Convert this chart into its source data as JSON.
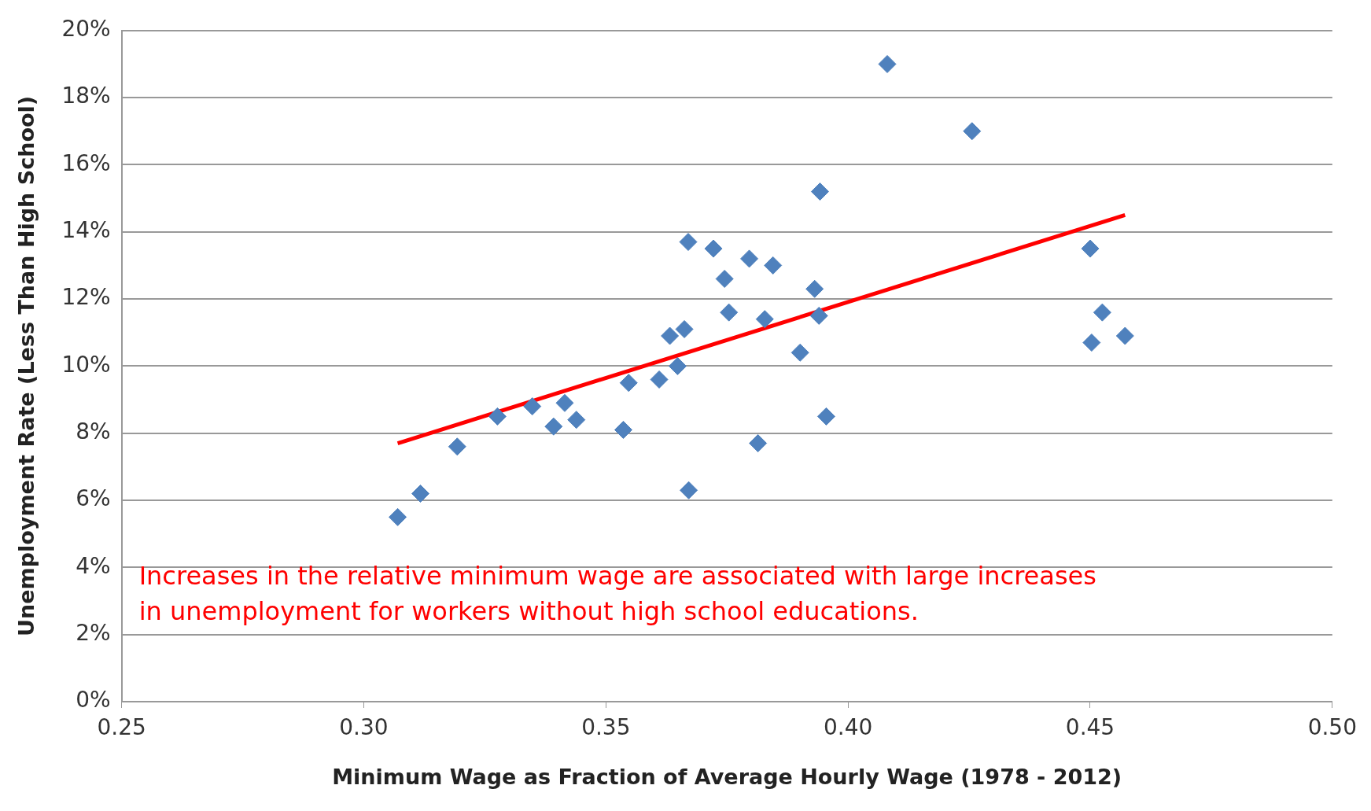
{
  "chart_data": {
    "type": "scatter",
    "xlabel": "Minimum Wage as Fraction of Average Hourly Wage (1978 - 2012)",
    "ylabel": "Unemployment Rate (Less Than High School)",
    "xlim": [
      0.25,
      0.5
    ],
    "xticks": [
      {
        "value": 0.25,
        "label": "0.25"
      },
      {
        "value": 0.3,
        "label": "0.30"
      },
      {
        "value": 0.35,
        "label": "0.35"
      },
      {
        "value": 0.4,
        "label": "0.40"
      },
      {
        "value": 0.45,
        "label": "0.45"
      },
      {
        "value": 0.5,
        "label": "0.50"
      }
    ],
    "ylim": [
      0,
      20
    ],
    "yticks": [
      {
        "value": 0,
        "label": "0%"
      },
      {
        "value": 2,
        "label": "2%"
      },
      {
        "value": 4,
        "label": "4%"
      },
      {
        "value": 6,
        "label": "6%"
      },
      {
        "value": 8,
        "label": "8%"
      },
      {
        "value": 10,
        "label": "10%"
      },
      {
        "value": 12,
        "label": "12%"
      },
      {
        "value": 14,
        "label": "14%"
      },
      {
        "value": 16,
        "label": "16%"
      },
      {
        "value": 18,
        "label": "18%"
      },
      {
        "value": 20,
        "label": "20%"
      }
    ],
    "grid": "y",
    "series": [
      {
        "type": "scatter",
        "marker": "diamond",
        "color": "#4f81bd",
        "x": [
          0.307,
          0.3117,
          0.3193,
          0.3276,
          0.3348,
          0.3392,
          0.3415,
          0.3439,
          0.3536,
          0.3547,
          0.361,
          0.3632,
          0.3648,
          0.3662,
          0.367,
          0.3671,
          0.3722,
          0.3745,
          0.3754,
          0.3796,
          0.3814,
          0.3828,
          0.3845,
          0.3901,
          0.3931,
          0.394,
          0.3942,
          0.3955,
          0.4081,
          0.4256,
          0.45,
          0.4503,
          0.4525,
          0.4572
        ],
        "values": [
          5.5,
          6.2,
          7.6,
          8.5,
          8.8,
          8.2,
          8.9,
          8.4,
          8.1,
          9.5,
          9.6,
          10.9,
          10.0,
          11.1,
          13.7,
          6.3,
          13.5,
          12.6,
          11.6,
          13.2,
          7.7,
          11.4,
          13.0,
          10.4,
          12.3,
          11.5,
          15.2,
          8.5,
          19.0,
          17.0,
          13.5,
          10.7,
          11.6,
          10.9
        ]
      },
      {
        "type": "line",
        "marker": "none",
        "color": "#ff0000",
        "x": [
          0.307,
          0.4572
        ],
        "values": [
          7.7,
          14.5
        ]
      }
    ],
    "annotations": [
      {
        "text": "Increases in the relative minimum wage are associated with large increases in unemployment for workers without high school educations."
      }
    ]
  }
}
